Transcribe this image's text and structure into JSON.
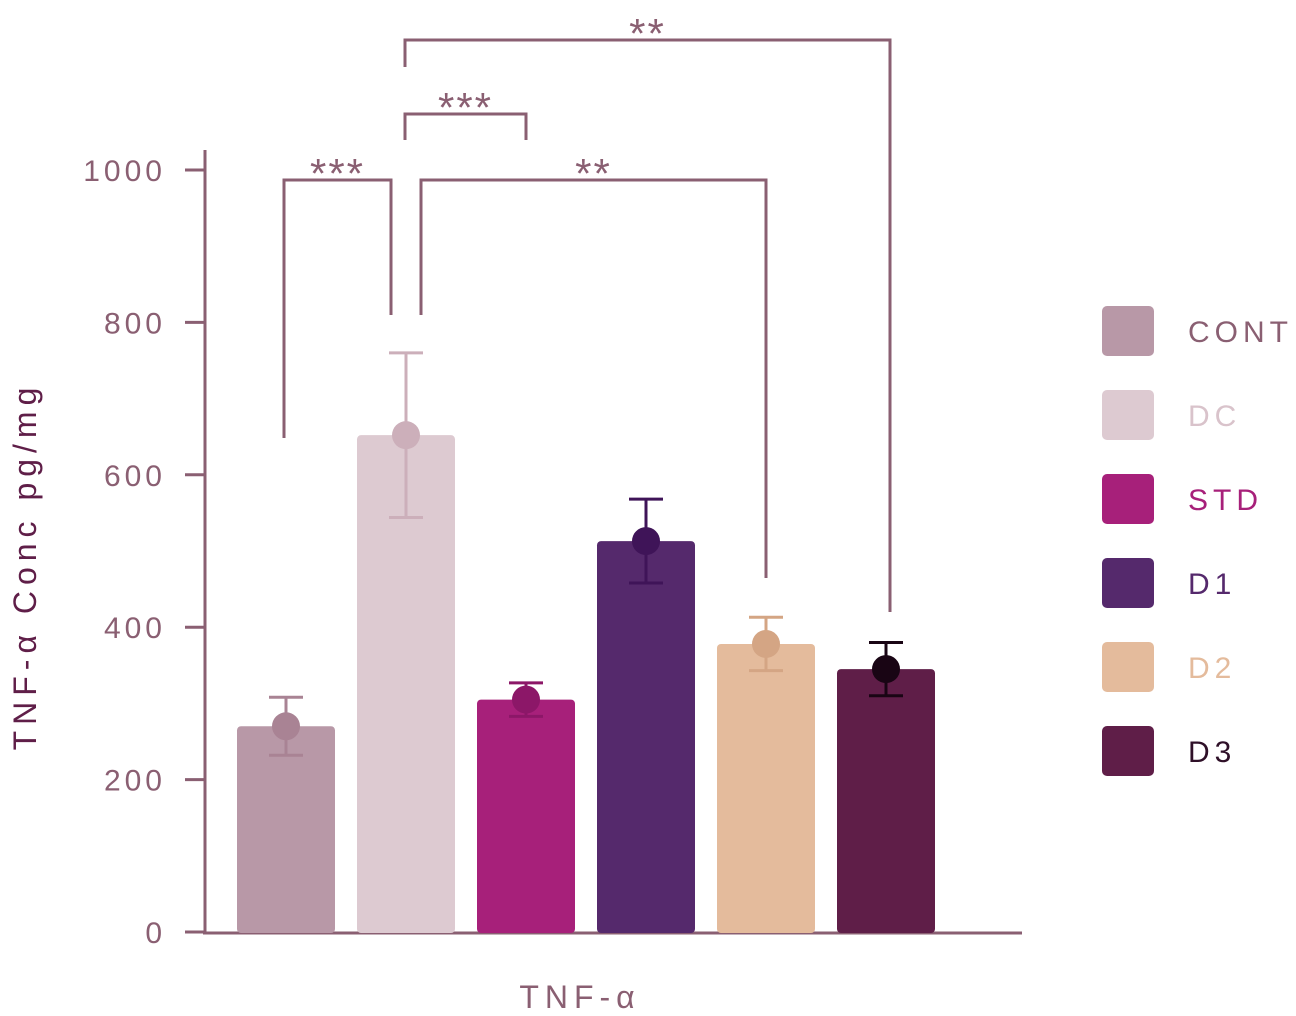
{
  "chart_data": {
    "type": "bar",
    "title": "",
    "xlabel": "TNF-α",
    "ylabel": "TNF-α Conc pg/mg",
    "ylim": [
      0,
      1000
    ],
    "yticks": [
      "0",
      "200",
      "400",
      "600",
      "800",
      "1000"
    ],
    "categories": [
      "CONT",
      "DC",
      "STD",
      "D1",
      "D2",
      "D3"
    ],
    "values": [
      270,
      652,
      305,
      513,
      378,
      345
    ],
    "errors": [
      38,
      108,
      22,
      55,
      35,
      35
    ],
    "colors": [
      "#B898A7",
      "#DDCAD1",
      "#A7207A",
      "#55296C",
      "#E4BB9C",
      "#5F1E48"
    ],
    "marker_colors": [
      "#A98394",
      "#CCAFBA",
      "#8C1768",
      "#3F1458",
      "#D4A584",
      "#190514"
    ],
    "legend": {
      "position": "right",
      "entries": [
        "CONT",
        "DC",
        "STD",
        "D1",
        "D2",
        "D3"
      ],
      "text_colors": [
        "#8A5F72",
        "#D9C3CB",
        "#A7207A",
        "#55296C",
        "#E4BB9C",
        "#2F1028"
      ]
    },
    "axis_color": "#8A5F72",
    "significance": [
      {
        "from": "CONT",
        "to": "DC",
        "label": "***"
      },
      {
        "from": "DC",
        "to": "STD",
        "label": "***"
      },
      {
        "from": "DC",
        "to": "D2",
        "label": "**"
      },
      {
        "from": "DC",
        "to": "D3",
        "label": "**"
      }
    ]
  }
}
